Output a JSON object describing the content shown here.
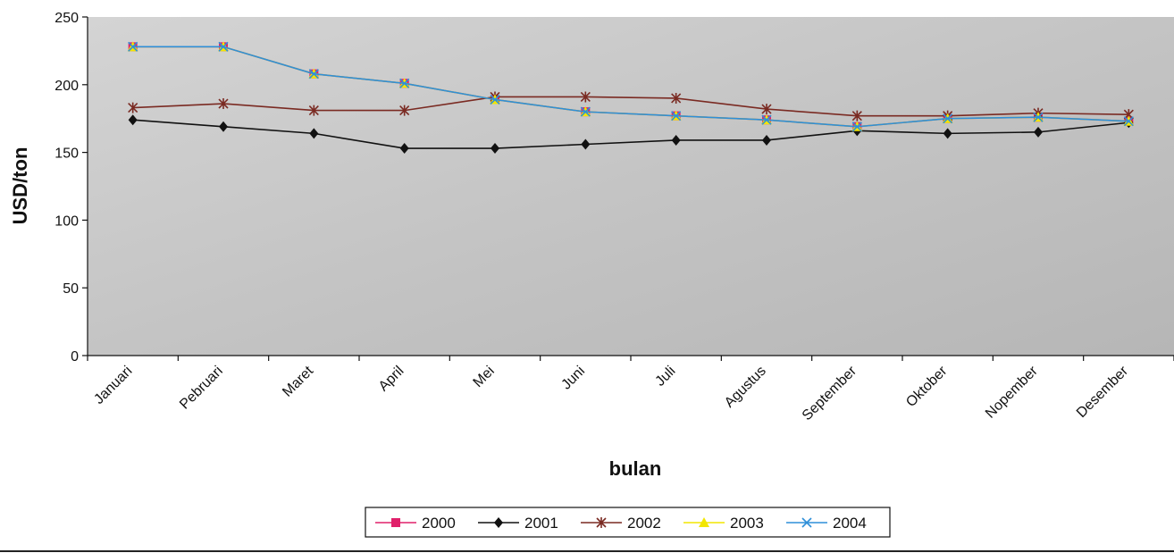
{
  "chart_data": {
    "type": "line",
    "title": "",
    "xlabel": "bulan",
    "ylabel": "USD/ton",
    "ylim": [
      0,
      250
    ],
    "yticks": [
      0,
      50,
      100,
      150,
      200,
      250
    ],
    "grid": false,
    "legend_position": "bottom",
    "categories": [
      "Januari",
      "Pebruari",
      "Maret",
      "April",
      "Mei",
      "Juni",
      "Juli",
      "Agustus",
      "September",
      "Oktober",
      "Nopember",
      "Desember"
    ],
    "series": [
      {
        "name": "2000",
        "color": "#e0206a",
        "marker": "square",
        "values": [
          228,
          228,
          208,
          201,
          189,
          180,
          177,
          174,
          169,
          175,
          176,
          173
        ]
      },
      {
        "name": "2001",
        "color": "#111111",
        "marker": "diamond",
        "values": [
          174,
          169,
          164,
          153,
          153,
          156,
          159,
          159,
          166,
          164,
          165,
          172
        ]
      },
      {
        "name": "2002",
        "color": "#7a2a22",
        "marker": "asterisk",
        "values": [
          183,
          186,
          181,
          181,
          191,
          191,
          190,
          182,
          177,
          177,
          179,
          178
        ]
      },
      {
        "name": "2003",
        "color": "#f2e600",
        "marker": "triangle",
        "values": [
          228,
          228,
          208,
          201,
          189,
          180,
          177,
          174,
          169,
          175,
          176,
          173
        ]
      },
      {
        "name": "2004",
        "color": "#2f8fd8",
        "marker": "x",
        "values": [
          228,
          228,
          208,
          201,
          189,
          180,
          177,
          174,
          169,
          175,
          176,
          173
        ]
      }
    ]
  }
}
